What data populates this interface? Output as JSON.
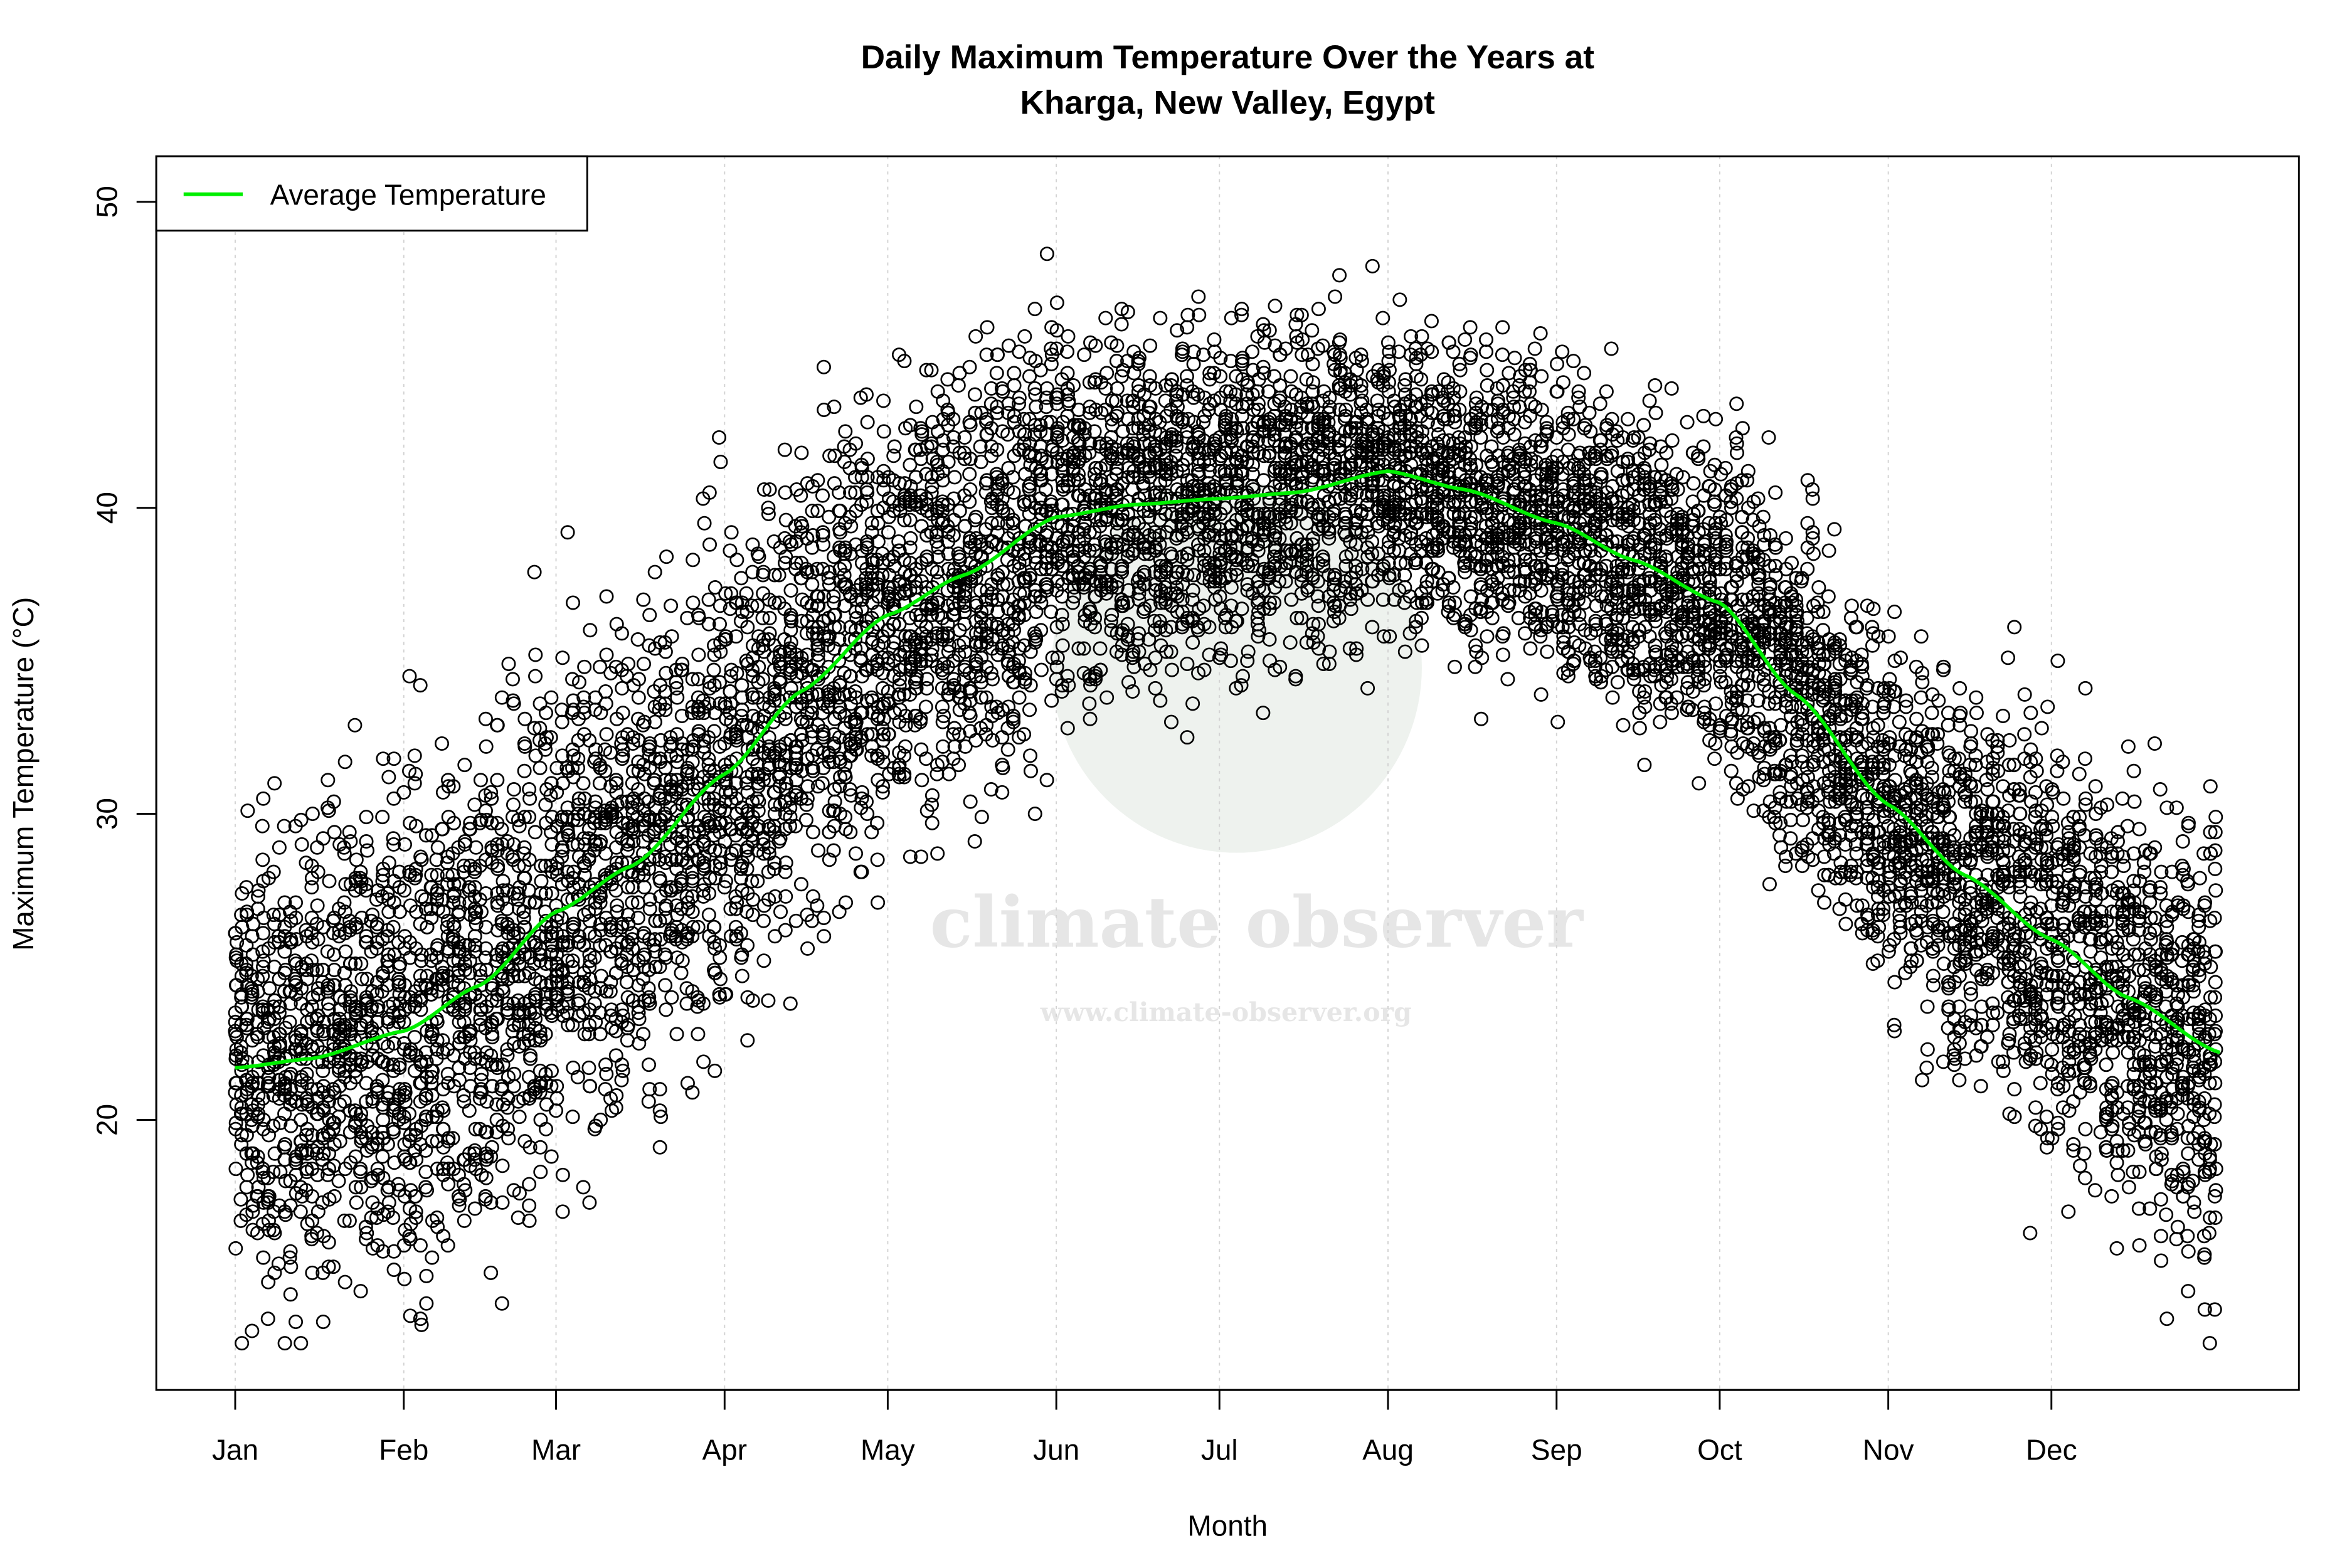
{
  "chart_data": {
    "type": "scatter",
    "title": "Daily Maximum Temperature Over the Years at\nKharga, New Valley, Egypt",
    "title_lines": [
      "Daily Maximum Temperature Over the Years at",
      "Kharga, New Valley, Egypt"
    ],
    "xlabel": "Month",
    "ylabel": "Maximum Temperature (°C)",
    "x_tick_labels": [
      "Jan",
      "Feb",
      "Mar",
      "Apr",
      "May",
      "Jun",
      "Jul",
      "Aug",
      "Sep",
      "Oct",
      "Nov",
      "Dec"
    ],
    "x_tick_day_of_year": [
      1,
      32,
      60,
      91,
      121,
      152,
      182,
      213,
      244,
      274,
      305,
      335
    ],
    "xlim_day_of_year": [
      1,
      366
    ],
    "y_ticks": [
      20,
      30,
      40,
      50
    ],
    "ylim": [
      12,
      51.5
    ],
    "grid": "vertical dotted lines at month ticks",
    "legend": {
      "placement": "top-left",
      "entries": [
        {
          "label": "Average Temperature",
          "color": "#00ee00"
        }
      ]
    },
    "scatter": {
      "marker": "open circle",
      "color": "#000000",
      "observed_min": 12.7,
      "observed_max": 50.0,
      "typical_spread_c": 3.2
    },
    "series": [
      {
        "name": "Average Temperature",
        "type": "line",
        "color": "#00ee00",
        "x_day_of_year": [
          1,
          15,
          32,
          46,
          60,
          74,
          91,
          105,
          121,
          135,
          152,
          166,
          182,
          196,
          213,
          227,
          244,
          258,
          274,
          288,
          305,
          319,
          335,
          349,
          366
        ],
        "values": [
          21.7,
          22.0,
          22.9,
          24.4,
          26.8,
          28.3,
          31.3,
          34.0,
          36.5,
          37.8,
          39.7,
          40.1,
          40.3,
          40.5,
          41.2,
          40.6,
          39.5,
          38.3,
          36.9,
          33.9,
          30.3,
          28.0,
          25.9,
          24.0,
          22.2
        ]
      }
    ]
  },
  "watermark": {
    "name": "climate observer",
    "url": "www.climate-observer.org"
  }
}
